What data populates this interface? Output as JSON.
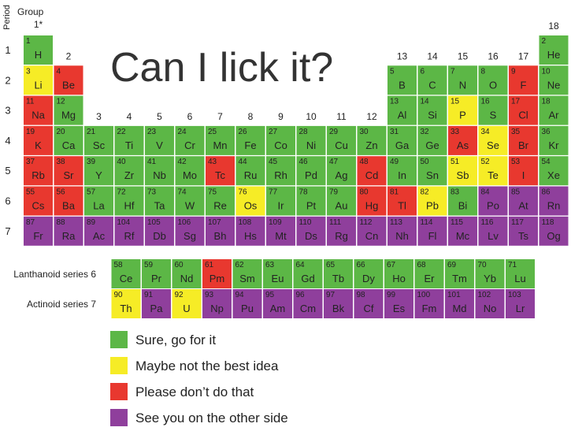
{
  "header": {
    "title": "Can I lick it?",
    "group_caption": "Group",
    "period_caption": "Period"
  },
  "groups": [
    "1*",
    "2",
    "3",
    "4",
    "5",
    "6",
    "7",
    "8",
    "9",
    "10",
    "11",
    "12",
    "13",
    "14",
    "15",
    "16",
    "17",
    "18"
  ],
  "table": {
    "rows": [
      {
        "period": "1",
        "cells": [
          [
            "1",
            "H",
            "#5cb746"
          ],
          null,
          null,
          null,
          null,
          null,
          null,
          null,
          null,
          null,
          null,
          null,
          null,
          null,
          null,
          null,
          null,
          [
            "2",
            "He",
            "#5cb746"
          ]
        ]
      },
      {
        "period": "2",
        "cells": [
          [
            "3",
            "Li",
            "#f6ec26"
          ],
          [
            "4",
            "Be",
            "#e8382f"
          ],
          null,
          null,
          null,
          null,
          null,
          null,
          null,
          null,
          null,
          null,
          [
            "5",
            "B",
            "#5cb746"
          ],
          [
            "6",
            "C",
            "#5cb746"
          ],
          [
            "7",
            "N",
            "#5cb746"
          ],
          [
            "8",
            "O",
            "#5cb746"
          ],
          [
            "9",
            "F",
            "#e8382f"
          ],
          [
            "10",
            "Ne",
            "#5cb746"
          ]
        ]
      },
      {
        "period": "3",
        "cells": [
          [
            "11",
            "Na",
            "#e8382f"
          ],
          [
            "12",
            "Mg",
            "#5cb746"
          ],
          null,
          null,
          null,
          null,
          null,
          null,
          null,
          null,
          null,
          null,
          [
            "13",
            "Al",
            "#5cb746"
          ],
          [
            "14",
            "Si",
            "#5cb746"
          ],
          [
            "15",
            "P",
            "#f6ec26"
          ],
          [
            "16",
            "S",
            "#5cb746"
          ],
          [
            "17",
            "Cl",
            "#e8382f"
          ],
          [
            "18",
            "Ar",
            "#5cb746"
          ]
        ]
      },
      {
        "period": "4",
        "cells": [
          [
            "19",
            "K",
            "#e8382f"
          ],
          [
            "20",
            "Ca",
            "#5cb746"
          ],
          [
            "21",
            "Sc",
            "#5cb746"
          ],
          [
            "22",
            "Ti",
            "#5cb746"
          ],
          [
            "23",
            "V",
            "#5cb746"
          ],
          [
            "24",
            "Cr",
            "#5cb746"
          ],
          [
            "25",
            "Mn",
            "#5cb746"
          ],
          [
            "26",
            "Fe",
            "#5cb746"
          ],
          [
            "27",
            "Co",
            "#5cb746"
          ],
          [
            "28",
            "Ni",
            "#5cb746"
          ],
          [
            "29",
            "Cu",
            "#5cb746"
          ],
          [
            "30",
            "Zn",
            "#5cb746"
          ],
          [
            "31",
            "Ga",
            "#5cb746"
          ],
          [
            "32",
            "Ge",
            "#5cb746"
          ],
          [
            "33",
            "As",
            "#e8382f"
          ],
          [
            "34",
            "Se",
            "#f6ec26"
          ],
          [
            "35",
            "Br",
            "#e8382f"
          ],
          [
            "36",
            "Kr",
            "#5cb746"
          ]
        ]
      },
      {
        "period": "5",
        "cells": [
          [
            "37",
            "Rb",
            "#e8382f"
          ],
          [
            "38",
            "Sr",
            "#e8382f"
          ],
          [
            "39",
            "Y",
            "#5cb746"
          ],
          [
            "40",
            "Zr",
            "#5cb746"
          ],
          [
            "41",
            "Nb",
            "#5cb746"
          ],
          [
            "42",
            "Mo",
            "#5cb746"
          ],
          [
            "43",
            "Tc",
            "#e8382f"
          ],
          [
            "44",
            "Ru",
            "#5cb746"
          ],
          [
            "45",
            "Rh",
            "#5cb746"
          ],
          [
            "46",
            "Pd",
            "#5cb746"
          ],
          [
            "47",
            "Ag",
            "#5cb746"
          ],
          [
            "48",
            "Cd",
            "#e8382f"
          ],
          [
            "49",
            "In",
            "#5cb746"
          ],
          [
            "50",
            "Sn",
            "#5cb746"
          ],
          [
            "51",
            "Sb",
            "#f6ec26"
          ],
          [
            "52",
            "Te",
            "#f6ec26"
          ],
          [
            "53",
            "I",
            "#e8382f"
          ],
          [
            "54",
            "Xe",
            "#5cb746"
          ]
        ]
      },
      {
        "period": "6",
        "cells": [
          [
            "55",
            "Cs",
            "#e8382f"
          ],
          [
            "56",
            "Ba",
            "#e8382f"
          ],
          [
            "57",
            "La",
            "#5cb746"
          ],
          [
            "72",
            "Hf",
            "#5cb746"
          ],
          [
            "73",
            "Ta",
            "#5cb746"
          ],
          [
            "74",
            "W",
            "#5cb746"
          ],
          [
            "75",
            "Re",
            "#5cb746"
          ],
          [
            "76",
            "Os",
            "#f6ec26"
          ],
          [
            "77",
            "Ir",
            "#5cb746"
          ],
          [
            "78",
            "Pt",
            "#5cb746"
          ],
          [
            "79",
            "Au",
            "#5cb746"
          ],
          [
            "80",
            "Hg",
            "#e8382f"
          ],
          [
            "81",
            "Tl",
            "#e8382f"
          ],
          [
            "82",
            "Pb",
            "#f6ec26"
          ],
          [
            "83",
            "Bi",
            "#5cb746"
          ],
          [
            "84",
            "Po",
            "#8f3f9c"
          ],
          [
            "85",
            "At",
            "#8f3f9c"
          ],
          [
            "86",
            "Rn",
            "#8f3f9c"
          ]
        ]
      },
      {
        "period": "7",
        "cells": [
          [
            "87",
            "Fr",
            "#8f3f9c"
          ],
          [
            "88",
            "Ra",
            "#8f3f9c"
          ],
          [
            "89",
            "Ac",
            "#8f3f9c"
          ],
          [
            "104",
            "Rf",
            "#8f3f9c"
          ],
          [
            "105",
            "Db",
            "#8f3f9c"
          ],
          [
            "106",
            "Sg",
            "#8f3f9c"
          ],
          [
            "107",
            "Bh",
            "#8f3f9c"
          ],
          [
            "108",
            "Hs",
            "#8f3f9c"
          ],
          [
            "109",
            "Mt",
            "#8f3f9c"
          ],
          [
            "110",
            "Ds",
            "#8f3f9c"
          ],
          [
            "111",
            "Rg",
            "#8f3f9c"
          ],
          [
            "112",
            "Cn",
            "#8f3f9c"
          ],
          [
            "113",
            "Nh",
            "#8f3f9c"
          ],
          [
            "114",
            "Fl",
            "#8f3f9c"
          ],
          [
            "115",
            "Mc",
            "#8f3f9c"
          ],
          [
            "116",
            "Lv",
            "#8f3f9c"
          ],
          [
            "117",
            "Ts",
            "#8f3f9c"
          ],
          [
            "118",
            "Og",
            "#8f3f9c"
          ]
        ]
      }
    ],
    "series": [
      {
        "label": "Lanthanoid series 6",
        "cells": [
          [
            "58",
            "Ce",
            "#5cb746"
          ],
          [
            "59",
            "Pr",
            "#5cb746"
          ],
          [
            "60",
            "Nd",
            "#5cb746"
          ],
          [
            "61",
            "Pm",
            "#e8382f"
          ],
          [
            "62",
            "Sm",
            "#5cb746"
          ],
          [
            "63",
            "Eu",
            "#5cb746"
          ],
          [
            "64",
            "Gd",
            "#5cb746"
          ],
          [
            "65",
            "Tb",
            "#5cb746"
          ],
          [
            "66",
            "Dy",
            "#5cb746"
          ],
          [
            "67",
            "Ho",
            "#5cb746"
          ],
          [
            "68",
            "Er",
            "#5cb746"
          ],
          [
            "69",
            "Tm",
            "#5cb746"
          ],
          [
            "70",
            "Yb",
            "#5cb746"
          ],
          [
            "71",
            "Lu",
            "#5cb746"
          ]
        ]
      },
      {
        "label": "Actinoid series 7",
        "cells": [
          [
            "90",
            "Th",
            "#f6ec26"
          ],
          [
            "91",
            "Pa",
            "#8f3f9c"
          ],
          [
            "92",
            "U",
            "#f6ec26"
          ],
          [
            "93",
            "Np",
            "#8f3f9c"
          ],
          [
            "94",
            "Pu",
            "#8f3f9c"
          ],
          [
            "95",
            "Am",
            "#8f3f9c"
          ],
          [
            "96",
            "Cm",
            "#8f3f9c"
          ],
          [
            "97",
            "Bk",
            "#8f3f9c"
          ],
          [
            "98",
            "Cf",
            "#8f3f9c"
          ],
          [
            "99",
            "Es",
            "#8f3f9c"
          ],
          [
            "100",
            "Fm",
            "#8f3f9c"
          ],
          [
            "101",
            "Md",
            "#8f3f9c"
          ],
          [
            "102",
            "No",
            "#8f3f9c"
          ],
          [
            "103",
            "Lr",
            "#8f3f9c"
          ]
        ]
      }
    ]
  },
  "legend": [
    {
      "label": "Sure, go for it",
      "color": "#5cb746"
    },
    {
      "label": "Maybe not the best idea",
      "color": "#f6ec26"
    },
    {
      "label": "Please don’t do that",
      "color": "#e8382f"
    },
    {
      "label": "See you on the other side",
      "color": "#8f3f9c"
    }
  ]
}
